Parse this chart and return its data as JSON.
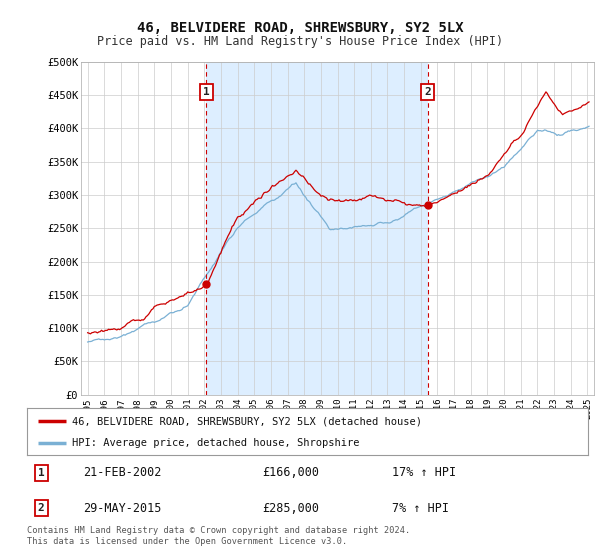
{
  "title": "46, BELVIDERE ROAD, SHREWSBURY, SY2 5LX",
  "subtitle": "Price paid vs. HM Land Registry's House Price Index (HPI)",
  "ylabel_ticks": [
    "£0",
    "£50K",
    "£100K",
    "£150K",
    "£200K",
    "£250K",
    "£300K",
    "£350K",
    "£400K",
    "£450K",
    "£500K"
  ],
  "ytick_values": [
    0,
    50000,
    100000,
    150000,
    200000,
    250000,
    300000,
    350000,
    400000,
    450000,
    500000
  ],
  "xlim_start": 1994.6,
  "xlim_end": 2025.4,
  "ylim": [
    0,
    500000
  ],
  "price_paid_color": "#cc0000",
  "hpi_color": "#7ab0d4",
  "shade_color": "#ddeeff",
  "marker1_date": 2002.13,
  "marker1_price": 166000,
  "marker2_date": 2015.41,
  "marker2_price": 285000,
  "legend_label1": "46, BELVIDERE ROAD, SHREWSBURY, SY2 5LX (detached house)",
  "legend_label2": "HPI: Average price, detached house, Shropshire",
  "annotation1_date": "21-FEB-2002",
  "annotation1_price": "£166,000",
  "annotation1_hpi": "17% ↑ HPI",
  "annotation2_date": "29-MAY-2015",
  "annotation2_price": "£285,000",
  "annotation2_hpi": "7% ↑ HPI",
  "footer": "Contains HM Land Registry data © Crown copyright and database right 2024.\nThis data is licensed under the Open Government Licence v3.0.",
  "bg_color": "#ffffff",
  "grid_color": "#cccccc",
  "plot_bg_color": "#ffffff"
}
